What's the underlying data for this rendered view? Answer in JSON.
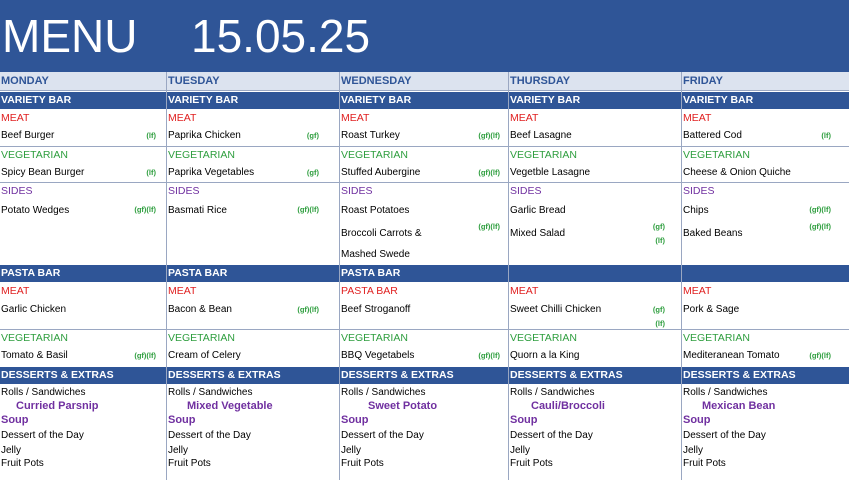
{
  "header": {
    "title": "MENU",
    "date": "15.05.25"
  },
  "days": [
    {
      "name": "MONDAY",
      "variety_bar": "VARIETY BAR",
      "meat_label": "MEAT",
      "meat": "Beef Burger",
      "meat_tag": "(lf)",
      "veg_label": "VEGETARIAN",
      "veg": "Spicy Bean Burger",
      "veg_tag": "(lf)",
      "sides_label": "SIDES",
      "side1": "Potato Wedges",
      "side1_tag": "(gf)(lf)",
      "side2": "",
      "side2_tag": "",
      "side3": "",
      "pasta_bar": "PASTA BAR",
      "pasta_label": "MEAT",
      "pasta": "Garlic Chicken",
      "pasta_tag": "",
      "pasta_veg_label": "VEGETARIAN",
      "pasta_veg": "Tomato & Basil",
      "pasta_veg_tag": "(gf)(lf)",
      "desserts_label": "DESSERTS & EXTRAS",
      "rolls": "Rolls / Sandwiches",
      "soup_name": "Curried Parsnip",
      "soup_label": "Soup",
      "dessert": "Dessert of the Day",
      "jelly": "Jelly",
      "fruit": "Fruit Pots"
    },
    {
      "name": "TUESDAY",
      "variety_bar": "VARIETY BAR",
      "meat_label": "MEAT",
      "meat": "Paprika Chicken",
      "meat_tag": "(gf)",
      "veg_label": "VEGETARIAN",
      "veg": "Paprika Vegetables",
      "veg_tag": "(gf)",
      "sides_label": "SIDES",
      "side1": "Basmati Rice",
      "side1_tag": "(gf)(lf)",
      "side2": "",
      "side2_tag": "",
      "side3": "",
      "pasta_bar": "PASTA BAR",
      "pasta_label": "MEAT",
      "pasta": "Bacon & Bean",
      "pasta_tag": "(gf)(lf)",
      "pasta_veg_label": "VEGETARIAN",
      "pasta_veg": "Cream of Celery",
      "pasta_veg_tag": "",
      "desserts_label": "DESSERTS & EXTRAS",
      "rolls": "Rolls / Sandwiches",
      "soup_name": "Mixed Vegetable",
      "soup_label": "Soup",
      "dessert": "Dessert of the Day",
      "jelly": "Jelly",
      "fruit": "Fruit Pots"
    },
    {
      "name": "WEDNESDAY",
      "variety_bar": "VARIETY BAR",
      "meat_label": "MEAT",
      "meat": "Roast Turkey",
      "meat_tag": "(gf)(lf)",
      "veg_label": "VEGETARIAN",
      "veg": "Stuffed Aubergine",
      "veg_tag": "(gf)(lf)",
      "sides_label": "SIDES",
      "side1": "Roast Potatoes",
      "side1_tag": "",
      "side2": "Broccoli Carrots &",
      "side2_tag": "(gf)(lf)",
      "side3": "Mashed Swede",
      "pasta_bar": "PASTA BAR",
      "pasta_label": "PASTA BAR",
      "pasta": "Beef Stroganoff",
      "pasta_tag": "",
      "pasta_veg_label": "VEGETARIAN",
      "pasta_veg": "BBQ Vegetabels",
      "pasta_veg_tag": "(gf)(lf)",
      "desserts_label": "DESSERTS & EXTRAS",
      "rolls": "Rolls / Sandwiches",
      "soup_name": "Sweet Potato",
      "soup_label": "Soup",
      "dessert": "Dessert of the Day",
      "jelly": "Jelly",
      "fruit": "Fruit Pots"
    },
    {
      "name": "THURSDAY",
      "variety_bar": "VARIETY BAR",
      "meat_label": "MEAT",
      "meat": "Beef Lasagne",
      "meat_tag": "",
      "veg_label": "VEGETARIAN",
      "veg": "Vegetble Lasagne",
      "veg_tag": "",
      "sides_label": "SIDES",
      "side1": "Garlic Bread",
      "side1_tag": "",
      "side2": "Mixed Salad",
      "side2_tag": "(gf)",
      "side2_tag_b": "(lf)",
      "side3": "",
      "pasta_bar": "",
      "pasta_label": "MEAT",
      "pasta": "Sweet Chilli Chicken",
      "pasta_tag": "(gf)",
      "pasta_tag_b": "(lf)",
      "pasta_veg_label": "VEGETARIAN",
      "pasta_veg": "Quorn a la King",
      "pasta_veg_tag": "",
      "desserts_label": "DESSERTS & EXTRAS",
      "rolls": "Rolls / Sandwiches",
      "soup_name": "Cauli/Broccoli",
      "soup_label": "Soup",
      "dessert": "Dessert of the Day",
      "jelly": "Jelly",
      "fruit": "Fruit Pots"
    },
    {
      "name": "FRIDAY",
      "variety_bar": "VARIETY BAR",
      "meat_label": "MEAT",
      "meat": "Battered Cod",
      "meat_tag": "(lf)",
      "veg_label": "VEGETARIAN",
      "veg": "Cheese & Onion Quiche",
      "veg_tag": "",
      "sides_label": "SIDES",
      "side1": "Chips",
      "side1_tag": "(gf)(lf)",
      "side2": "Baked Beans",
      "side2_tag": "(gf)(lf)",
      "side3": "",
      "pasta_bar": "",
      "pasta_label": "MEAT",
      "pasta": "Pork & Sage",
      "pasta_tag": "",
      "pasta_veg_label": "VEGETARIAN",
      "pasta_veg": "Mediteranean Tomato",
      "pasta_veg_tag": "(gf)(lf)",
      "desserts_label": "DESSERTS & EXTRAS",
      "rolls": "Rolls / Sandwiches",
      "soup_name": "Mexican Bean",
      "soup_label": "Soup",
      "dessert": "Dessert of the Day",
      "jelly": "Jelly",
      "fruit": "Fruit Pots"
    }
  ],
  "colors": {
    "banner": "#2f5597",
    "meat": "#e02020",
    "vegetarian": "#2e9e3e",
    "sides": "#7030a0",
    "tag": "#2e9e3e"
  }
}
